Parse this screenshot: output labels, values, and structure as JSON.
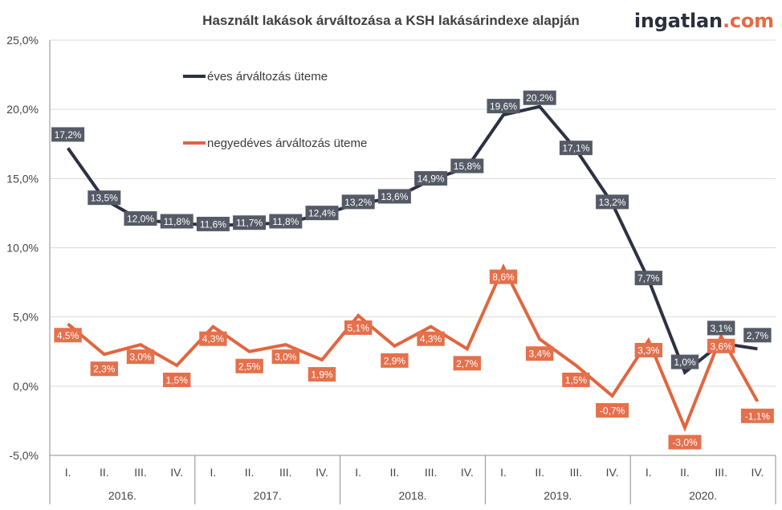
{
  "header": {
    "logo_main": "ingatlan",
    "logo_tld": ".com"
  },
  "colors": {
    "annual": "#2d3142",
    "annual_label_bg": "#555a66",
    "quarterly": "#e06640",
    "quarterly_label_bg": "#e4704c",
    "grid": "#d9d9d9",
    "axis": "#8c8c8c"
  },
  "chart_data": {
    "type": "line",
    "title": "Használt lakások árváltozása a KSH lakásárindexe alapján",
    "ylim": [
      -5,
      25
    ],
    "y_ticks": [
      "-5,0%",
      "0,0%",
      "5,0%",
      "10,0%",
      "15,0%",
      "20,0%",
      "25,0%"
    ],
    "y_tick_values": [
      -5,
      0,
      5,
      10,
      15,
      20,
      25
    ],
    "categories": [
      "I.",
      "II.",
      "III.",
      "IV.",
      "I.",
      "II.",
      "III.",
      "IV.",
      "I.",
      "II.",
      "III.",
      "IV.",
      "I.",
      "II.",
      "III.",
      "IV.",
      "I.",
      "II.",
      "III.",
      "IV."
    ],
    "groups": [
      "2016.",
      "2017.",
      "2018.",
      "2019.",
      "2020."
    ],
    "series": [
      {
        "name": "éves árváltozás üteme",
        "values": [
          17.2,
          13.5,
          12.0,
          11.8,
          11.6,
          11.7,
          11.8,
          12.4,
          13.2,
          13.6,
          14.9,
          15.8,
          19.6,
          20.2,
          17.1,
          13.2,
          7.7,
          1.0,
          3.1,
          2.7
        ],
        "labels": [
          "17,2%",
          "13,5%",
          "12,0%",
          "11,8%",
          "11,6%",
          "11,7%",
          "11,8%",
          "12,4%",
          "13,2%",
          "13,6%",
          "14,9%",
          "15,8%",
          "19,6%",
          "20,2%",
          "17,1%",
          "13,2%",
          "7,7%",
          "1,0%",
          "3,1%",
          "2,7%"
        ]
      },
      {
        "name": "negyedéves árváltozás üteme",
        "values": [
          4.5,
          2.3,
          3.0,
          1.5,
          4.3,
          2.5,
          3.0,
          1.9,
          5.1,
          2.9,
          4.3,
          2.7,
          8.6,
          3.4,
          1.5,
          -0.7,
          3.3,
          -3.0,
          3.6,
          -1.1
        ],
        "labels": [
          "4,5%",
          "2,3%",
          "3,0%",
          "1,5%",
          "4,3%",
          "2,5%",
          "3,0%",
          "1,9%",
          "5,1%",
          "2,9%",
          "4,3%",
          "2,7%",
          "8,6%",
          "3,4%",
          "1,5%",
          "-0,7%",
          "3,3%",
          "-3,0%",
          "3,6%",
          "-1,1%"
        ]
      }
    ],
    "legend_position": "top-left",
    "grid": true
  }
}
